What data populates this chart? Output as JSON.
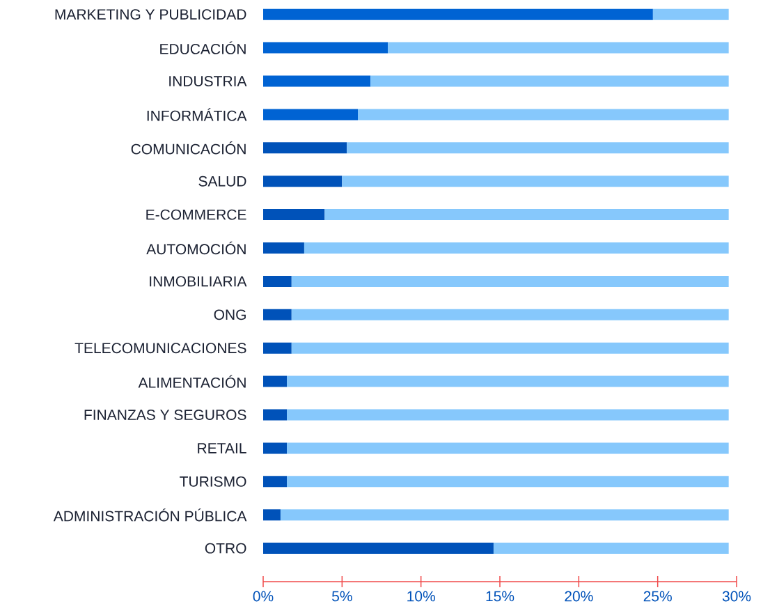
{
  "chart_data": {
    "type": "bar",
    "orientation": "horizontal",
    "stacked": true,
    "categories": [
      "MARKETING Y PUBLICIDAD",
      "EDUCACIÓN",
      "INDUSTRIA",
      "INFORMÁTICA",
      "COMUNICACIÓN",
      "SALUD",
      "E-COMMERCE",
      "AUTOMOCIÓN",
      "INMOBILIARIA",
      "ONG",
      "TELECOMUNICACIONES",
      "ALIMENTACIÓN",
      "FINANZAS Y SEGUROS",
      "RETAIL",
      "TURISMO",
      "ADMINISTRACIÓN PÚBLICA",
      "OTRO"
    ],
    "series": [
      {
        "values": [
          24.7,
          7.9,
          6.8,
          6.0,
          5.3,
          5.0,
          3.9,
          2.6,
          1.8,
          1.8,
          1.8,
          1.5,
          1.5,
          1.5,
          1.5,
          1.1,
          14.6
        ],
        "colors": [
          "#0063d3",
          "#0063d3",
          "#0063d3",
          "#0063d3",
          "#0052b9",
          "#0052b9",
          "#0052b9",
          "#0052b9",
          "#0052b9",
          "#0052b9",
          "#0052b9",
          "#0052b9",
          "#0052b9",
          "#0052b9",
          "#0052b9",
          "#0052b9",
          "#0052b9"
        ]
      },
      {
        "values": [
          4.8,
          21.6,
          22.7,
          23.5,
          24.2,
          24.5,
          25.6,
          26.9,
          27.7,
          27.7,
          27.7,
          28.0,
          28.0,
          28.0,
          28.0,
          28.4,
          14.9
        ],
        "color": "#86c8fc"
      }
    ],
    "xlim": [
      0,
      30
    ],
    "xticks": [
      {
        "value": 0,
        "label": "0%"
      },
      {
        "value": 5,
        "label": "5%"
      },
      {
        "value": 10,
        "label": "10%"
      },
      {
        "value": 15,
        "label": "15%"
      },
      {
        "value": 20,
        "label": "20%"
      },
      {
        "value": 25,
        "label": "25%"
      },
      {
        "value": 30,
        "label": "30%"
      }
    ],
    "grid": false
  }
}
